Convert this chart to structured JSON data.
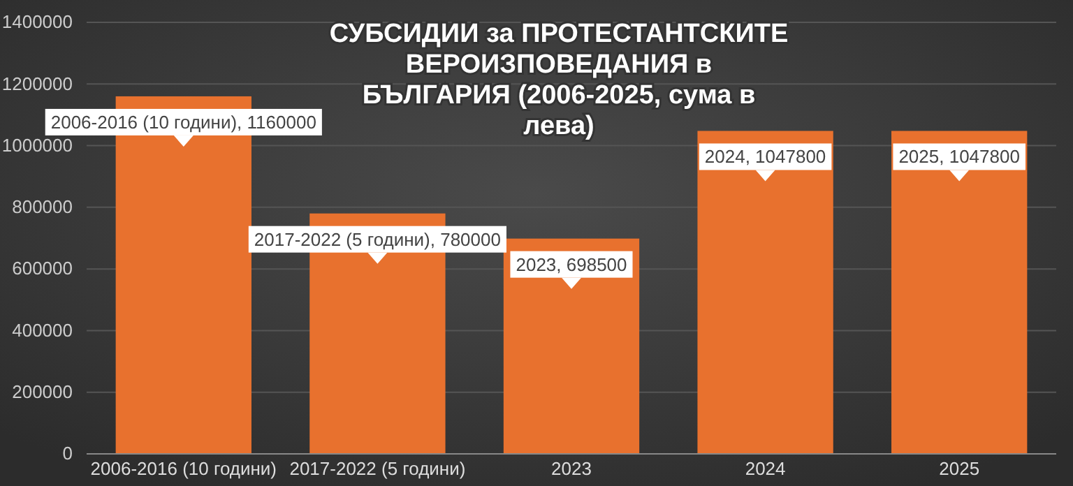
{
  "chart_data": {
    "type": "bar",
    "title": "СУБСИДИИ за ПРОТЕСТАНТСКИТЕ ВЕРОИЗПОВЕДАНИЯ в БЪЛГАРИЯ (2006-2025, сума в лева)",
    "categories": [
      "2006-2016 (10 години)",
      "2017-2022 (5 години)",
      "2023",
      "2024",
      "2025"
    ],
    "values": [
      1160000,
      780000,
      698500,
      1047800,
      1047800
    ],
    "value_labels": [
      "2006-2016 (10 години), 1160000",
      "2017-2022 (5 години), 780000",
      "2023, 698500",
      "2024, 1047800",
      "2025, 1047800"
    ],
    "color": "#e8712e",
    "ylim": [
      0,
      1400000
    ],
    "yticks": [
      0,
      200000,
      400000,
      600000,
      800000,
      1000000,
      1200000,
      1400000
    ],
    "grid": "y"
  }
}
